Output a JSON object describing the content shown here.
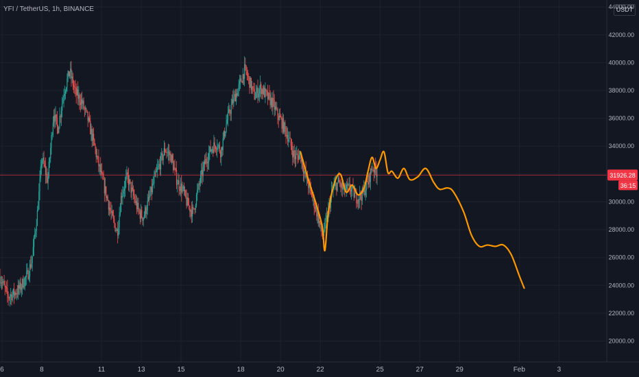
{
  "header": {
    "symbol": "YFI / TetherUS, 1h, BINANCE"
  },
  "price_axis": {
    "unit": "USDT"
  },
  "colors": {
    "background": "#131722",
    "grid": "#1e222d",
    "up": "#26a69a",
    "down": "#ef5350",
    "drawing": "#ff9800",
    "price_line": "#f23645",
    "axis_text": "#b2b5be"
  },
  "chart_data": {
    "type": "candlestick",
    "title": "YFI / TetherUS, 1h, BINANCE",
    "y_unit": "USDT",
    "ylim": [
      18500,
      44500
    ],
    "y_ticks": [
      20000,
      22000,
      24000,
      26000,
      28000,
      30000,
      32000,
      34000,
      36000,
      38000,
      40000,
      42000,
      44000
    ],
    "y_tick_labels": [
      "20000.00",
      "22000.00",
      "24000.00",
      "26000.00",
      "28000.00",
      "30000.00",
      "32000.00",
      "34000.00",
      "36000.00",
      "38000.00",
      "40000.00",
      "42000.00",
      "44000.00"
    ],
    "x_ticks": [
      {
        "day": 6,
        "label": "6"
      },
      {
        "day": 8,
        "label": "8"
      },
      {
        "day": 11,
        "label": "11"
      },
      {
        "day": 13,
        "label": "13"
      },
      {
        "day": 15,
        "label": "15"
      },
      {
        "day": 18,
        "label": "18"
      },
      {
        "day": 20,
        "label": "20"
      },
      {
        "day": 22,
        "label": "22"
      },
      {
        "day": 25,
        "label": "25"
      },
      {
        "day": 27,
        "label": "27"
      },
      {
        "day": 29,
        "label": "29"
      },
      {
        "day": 32,
        "label": "Feb"
      },
      {
        "day": 34,
        "label": "3"
      }
    ],
    "xlim": [
      5.9,
      36.4
    ],
    "price_path": [
      [
        5.9,
        24600
      ],
      [
        6.3,
        23200
      ],
      [
        6.6,
        23400
      ],
      [
        6.9,
        23800
      ],
      [
        7.3,
        24800
      ],
      [
        7.5,
        25800
      ],
      [
        7.8,
        29500
      ],
      [
        8.0,
        33200
      ],
      [
        8.3,
        31500
      ],
      [
        8.6,
        36500
      ],
      [
        8.8,
        35200
      ],
      [
        9.1,
        37800
      ],
      [
        9.4,
        39400
      ],
      [
        9.7,
        37800
      ],
      [
        10.0,
        37200
      ],
      [
        10.3,
        36000
      ],
      [
        10.6,
        34300
      ],
      [
        10.8,
        33000
      ],
      [
        11.0,
        31800
      ],
      [
        11.3,
        30200
      ],
      [
        11.5,
        29000
      ],
      [
        11.8,
        27800
      ],
      [
        12.0,
        30500
      ],
      [
        12.3,
        31800
      ],
      [
        12.6,
        30400
      ],
      [
        12.9,
        29200
      ],
      [
        13.1,
        28900
      ],
      [
        13.4,
        30200
      ],
      [
        13.7,
        31800
      ],
      [
        14.0,
        33000
      ],
      [
        14.2,
        33800
      ],
      [
        14.5,
        33200
      ],
      [
        14.8,
        31500
      ],
      [
        15.1,
        30800
      ],
      [
        15.3,
        29900
      ],
      [
        15.6,
        29200
      ],
      [
        15.9,
        31200
      ],
      [
        16.2,
        32800
      ],
      [
        16.5,
        33800
      ],
      [
        16.8,
        34200
      ],
      [
        17.0,
        33600
      ],
      [
        17.3,
        35800
      ],
      [
        17.6,
        37200
      ],
      [
        17.9,
        38200
      ],
      [
        18.2,
        39500
      ],
      [
        18.4,
        38800
      ],
      [
        18.7,
        37600
      ],
      [
        19.0,
        38200
      ],
      [
        19.3,
        37600
      ],
      [
        19.6,
        37100
      ],
      [
        19.8,
        36400
      ],
      [
        20.1,
        35600
      ],
      [
        20.4,
        34600
      ],
      [
        20.7,
        33200
      ],
      [
        21.0,
        33400
      ],
      [
        21.2,
        32100
      ],
      [
        21.5,
        30800
      ],
      [
        21.8,
        29400
      ],
      [
        22.1,
        27600
      ],
      [
        22.3,
        28600
      ],
      [
        22.6,
        30800
      ],
      [
        22.9,
        31400
      ],
      [
        23.2,
        30800
      ],
      [
        23.5,
        31000
      ],
      [
        23.8,
        30300
      ],
      [
        24.1,
        30500
      ],
      [
        24.4,
        31400
      ],
      [
        24.6,
        32500
      ],
      [
        24.9,
        32100
      ]
    ],
    "projection_path": [
      [
        21.0,
        33600
      ],
      [
        21.4,
        31600
      ],
      [
        21.8,
        29800
      ],
      [
        22.1,
        28200
      ],
      [
        22.23,
        26500
      ],
      [
        22.4,
        29200
      ],
      [
        22.7,
        31300
      ],
      [
        23.0,
        32000
      ],
      [
        23.3,
        30700
      ],
      [
        23.6,
        31200
      ],
      [
        23.9,
        30500
      ],
      [
        24.2,
        31000
      ],
      [
        24.4,
        32200
      ],
      [
        24.6,
        33200
      ],
      [
        24.8,
        32400
      ],
      [
        25.0,
        33000
      ],
      [
        25.2,
        33600
      ],
      [
        25.4,
        32100
      ],
      [
        25.6,
        32200
      ],
      [
        25.9,
        31700
      ],
      [
        26.2,
        32400
      ],
      [
        26.5,
        31600
      ],
      [
        26.9,
        31800
      ],
      [
        27.3,
        32400
      ],
      [
        27.7,
        31400
      ],
      [
        28.0,
        30900
      ],
      [
        28.4,
        31000
      ],
      [
        28.7,
        30700
      ],
      [
        29.2,
        29300
      ],
      [
        29.6,
        27600
      ],
      [
        30.0,
        26800
      ],
      [
        30.4,
        26900
      ],
      [
        30.8,
        26800
      ],
      [
        31.2,
        26900
      ],
      [
        31.6,
        26200
      ],
      [
        32.0,
        24700
      ],
      [
        32.25,
        23800
      ]
    ],
    "last_price": 31926.28,
    "last_price_label": "31926.28",
    "countdown_label": "36:15",
    "grid": true,
    "legend": "none"
  }
}
